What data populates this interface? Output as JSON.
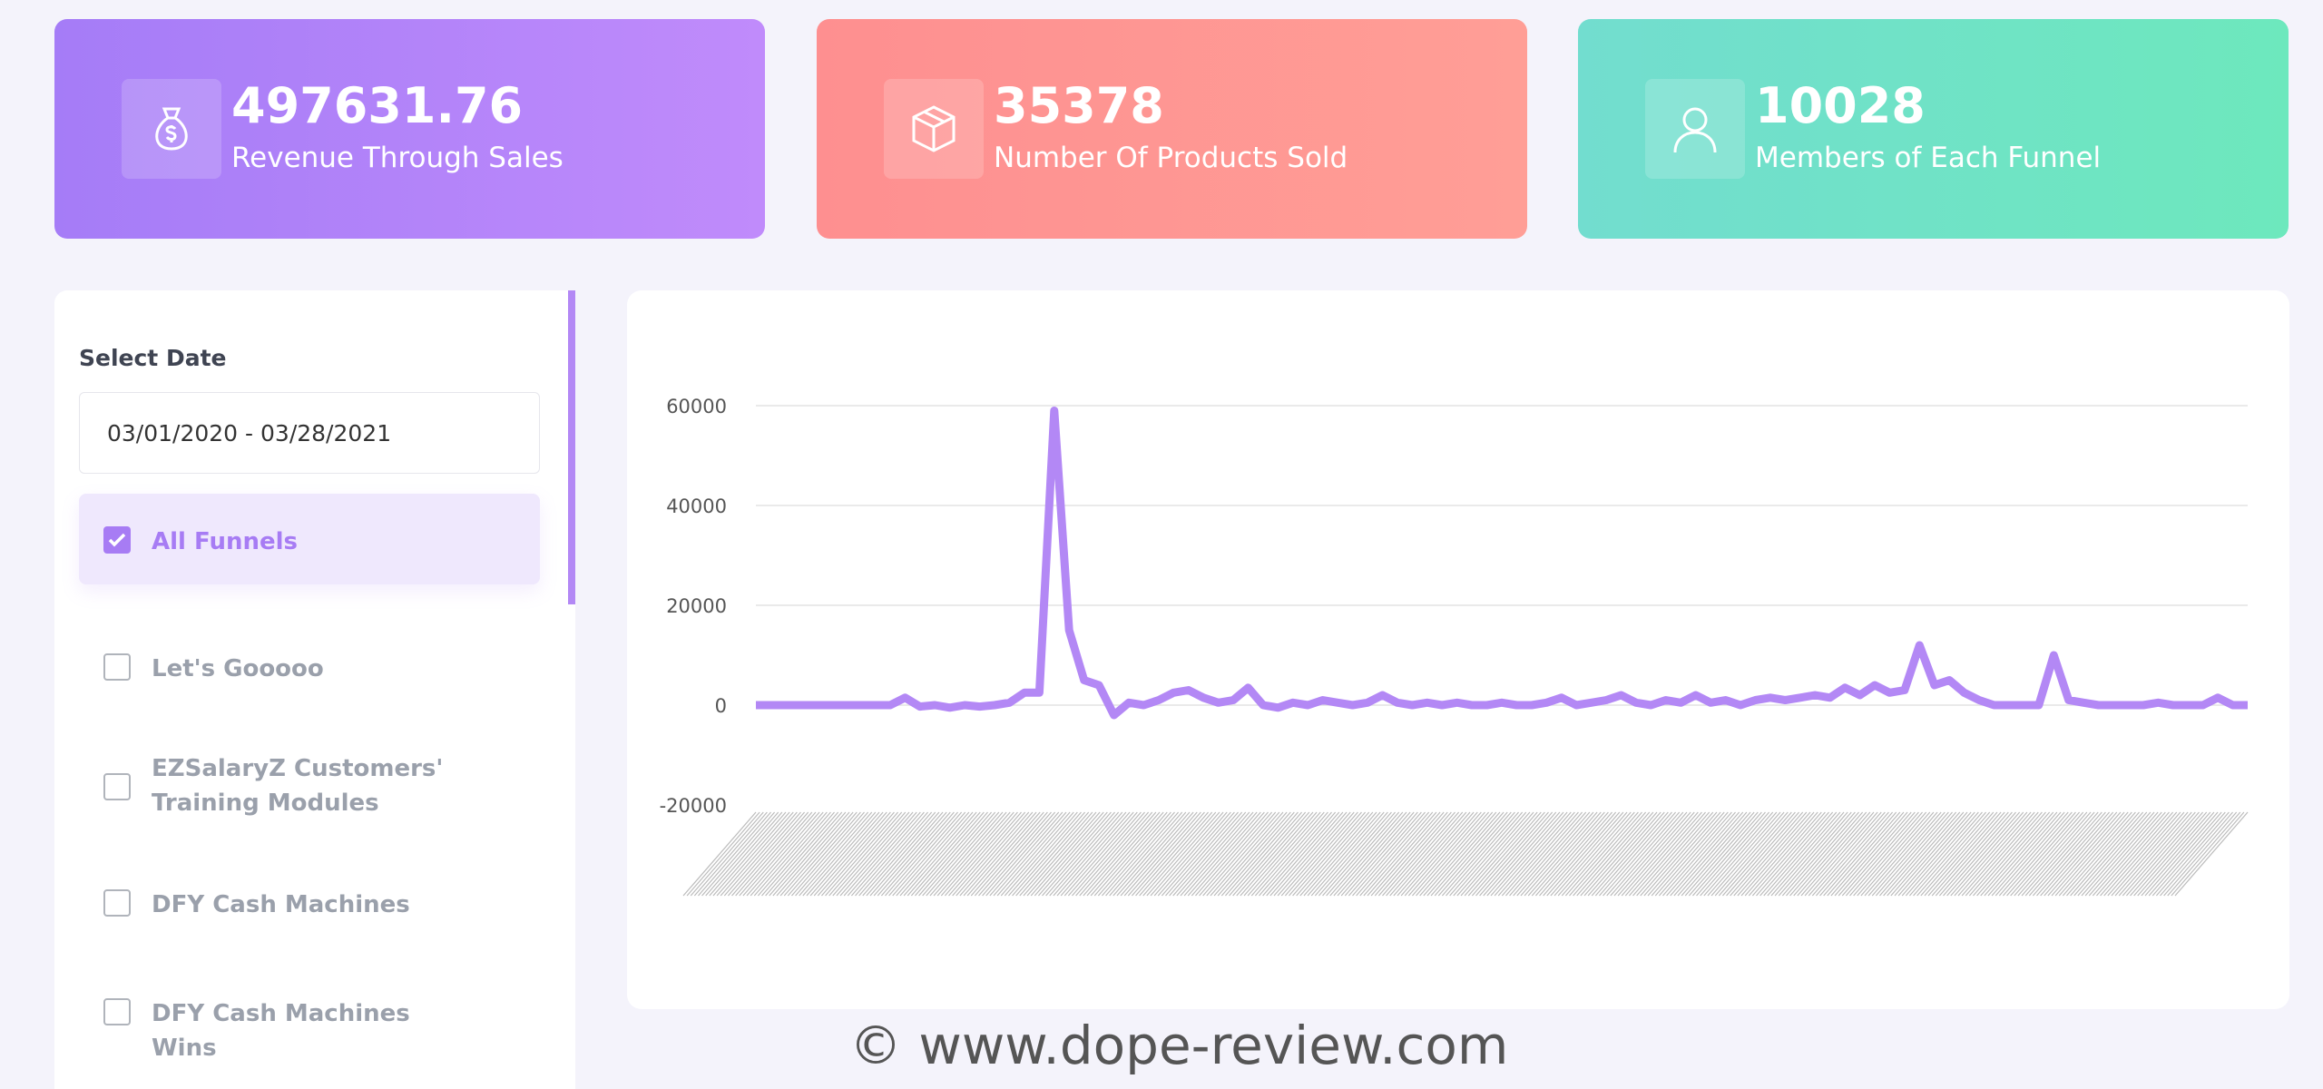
{
  "cards": [
    {
      "value": "497631.76",
      "label": "Revenue Through Sales"
    },
    {
      "value": "35378",
      "label": "Number Of Products Sold"
    },
    {
      "value": "10028",
      "label": "Members of Each Funnel"
    }
  ],
  "sidebar": {
    "title": "Select Date",
    "date_range": "03/01/2020 - 03/28/2021",
    "funnels": [
      {
        "label": "All Funnels",
        "checked": true
      },
      {
        "label": "Let's Gooooo",
        "checked": false
      },
      {
        "label": "EZSalaryZ Customers' Training Modules",
        "checked": false
      },
      {
        "label": "DFY Cash Machines",
        "checked": false
      },
      {
        "label": "DFY Cash Machines Wins",
        "checked": false
      }
    ]
  },
  "chart_data": {
    "type": "line",
    "color": "#b388f5",
    "ylim": [
      -20000,
      60000
    ],
    "yticks": [
      -20000,
      0,
      20000,
      40000,
      60000
    ],
    "grid": true,
    "values": [
      0,
      0,
      0,
      0,
      0,
      0,
      0,
      0,
      0,
      0,
      1500,
      -300,
      0,
      -500,
      0,
      -300,
      0,
      500,
      2500,
      2500,
      59000,
      15000,
      5000,
      4000,
      -2000,
      500,
      0,
      1000,
      2500,
      3000,
      1500,
      500,
      1000,
      3500,
      0,
      -500,
      500,
      0,
      1000,
      500,
      0,
      500,
      2000,
      500,
      0,
      500,
      0,
      500,
      0,
      0,
      500,
      0,
      0,
      500,
      1500,
      0,
      500,
      1000,
      2000,
      500,
      0,
      1000,
      500,
      2000,
      500,
      1000,
      0,
      1000,
      1500,
      1000,
      1500,
      2000,
      1500,
      3500,
      2000,
      4000,
      2500,
      3000,
      12000,
      4000,
      5000,
      2500,
      1000,
      0,
      0,
      0,
      0,
      10000,
      1000,
      500,
      0,
      0,
      0,
      0,
      500,
      0,
      0,
      0,
      1500,
      0,
      0
    ]
  },
  "watermark": "© www.dope-review.com"
}
